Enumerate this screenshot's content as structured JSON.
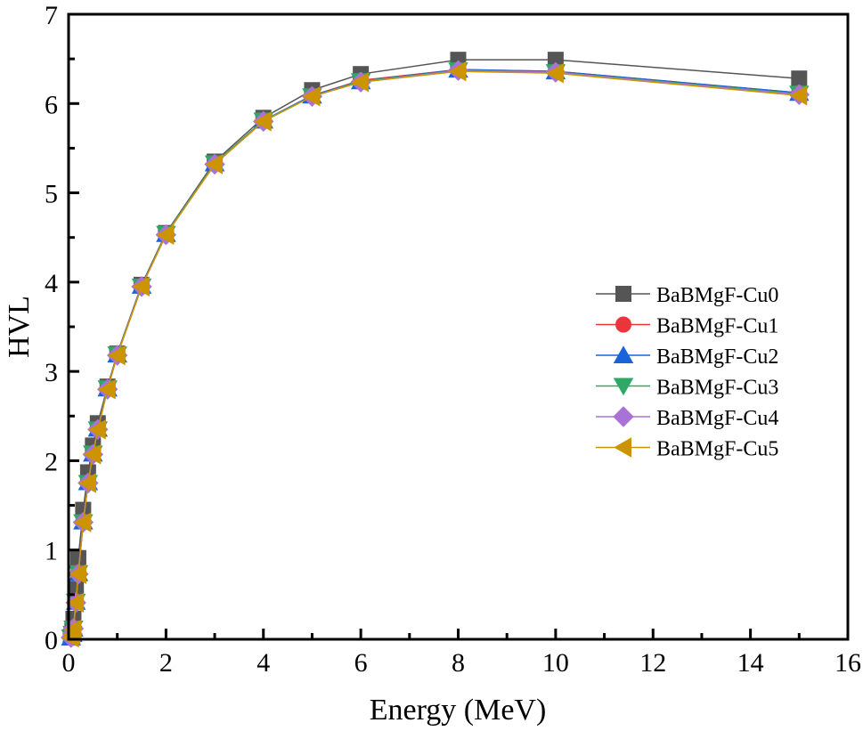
{
  "chart_data": {
    "type": "line",
    "title": "",
    "xlabel": "Energy (MeV)",
    "ylabel": "HVL",
    "xlim": [
      0,
      16
    ],
    "ylim": [
      0,
      7
    ],
    "xticks": [
      "0",
      "2",
      "4",
      "6",
      "8",
      "10",
      "12",
      "14",
      "16"
    ],
    "yticks": [
      "0",
      "1",
      "2",
      "3",
      "4",
      "5",
      "6",
      "7"
    ],
    "grid": false,
    "legend_position": "center-right",
    "x": [
      0.05,
      0.08,
      0.1,
      0.15,
      0.2,
      0.3,
      0.4,
      0.5,
      0.6,
      0.8,
      1,
      1.5,
      2,
      3,
      4,
      5,
      6,
      8,
      10,
      15
    ],
    "series": [
      {
        "name": "BaBMgF-Cu0",
        "color": "#555555",
        "marker": "square",
        "values": [
          0.03,
          0.1,
          0.23,
          0.56,
          0.91,
          1.45,
          1.87,
          2.17,
          2.42,
          2.83,
          3.2,
          3.97,
          4.55,
          5.35,
          5.84,
          6.15,
          6.33,
          6.49,
          6.49,
          6.28
        ]
      },
      {
        "name": "BaBMgF-Cu1",
        "color": "#e8363c",
        "marker": "circle",
        "values": [
          0.02,
          0.06,
          0.13,
          0.43,
          0.75,
          1.32,
          1.76,
          2.08,
          2.36,
          2.81,
          3.19,
          3.96,
          4.54,
          5.33,
          5.81,
          6.09,
          6.26,
          6.38,
          6.36,
          6.12
        ]
      },
      {
        "name": "BaBMgF-Cu2",
        "color": "#1a63d9",
        "marker": "triangle-up",
        "values": [
          0.02,
          0.06,
          0.12,
          0.42,
          0.74,
          1.32,
          1.76,
          2.08,
          2.36,
          2.81,
          3.19,
          3.96,
          4.54,
          5.33,
          5.81,
          6.09,
          6.25,
          6.38,
          6.36,
          6.12
        ]
      },
      {
        "name": "BaBMgF-Cu3",
        "color": "#2fa866",
        "marker": "triangle-down",
        "values": [
          0.02,
          0.06,
          0.12,
          0.42,
          0.74,
          1.31,
          1.75,
          2.08,
          2.35,
          2.81,
          3.19,
          3.95,
          4.54,
          5.33,
          5.81,
          6.08,
          6.25,
          6.37,
          6.35,
          6.11
        ]
      },
      {
        "name": "BaBMgF-Cu4",
        "color": "#a872d8",
        "marker": "diamond",
        "values": [
          0.02,
          0.06,
          0.12,
          0.41,
          0.73,
          1.31,
          1.75,
          2.07,
          2.35,
          2.8,
          3.18,
          3.95,
          4.53,
          5.32,
          5.8,
          6.08,
          6.24,
          6.37,
          6.35,
          6.1
        ]
      },
      {
        "name": "BaBMgF-Cu5",
        "color": "#cc9400",
        "marker": "triangle-left",
        "values": [
          0.02,
          0.05,
          0.11,
          0.41,
          0.73,
          1.31,
          1.75,
          2.07,
          2.35,
          2.8,
          3.18,
          3.95,
          4.53,
          5.32,
          5.8,
          6.08,
          6.24,
          6.36,
          6.34,
          6.09
        ]
      }
    ]
  }
}
